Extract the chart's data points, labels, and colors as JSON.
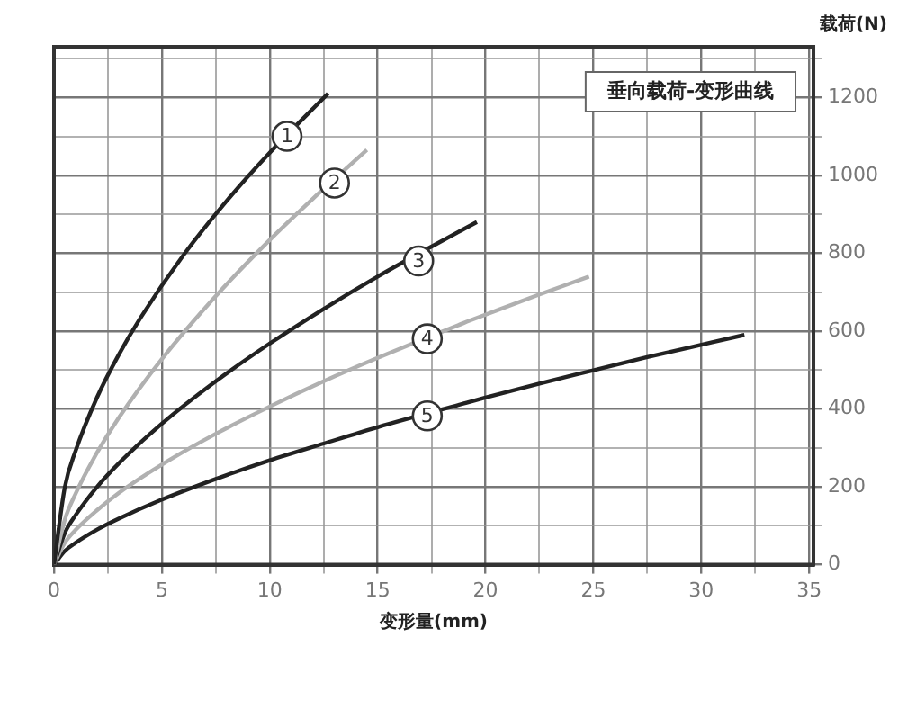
{
  "chart_data": {
    "type": "line",
    "title": "垂向载荷-变形曲线",
    "xlabel": "变形量(mm)",
    "ylabel": "载荷(N)",
    "series": [
      {
        "color": "#222222",
        "x": [
          0,
          0.5,
          1,
          2,
          3,
          4,
          6,
          8,
          10,
          12.7
        ],
        "values": [
          0,
          198,
          292,
          430,
          539,
          633,
          795,
          934,
          1058,
          1210
        ]
      },
      {
        "color": "#b0b0b0",
        "x": [
          0,
          0.5,
          1,
          2,
          3,
          5,
          7.5,
          10,
          12,
          14.5
        ],
        "values": [
          0,
          115,
          182,
          288,
          377,
          528,
          690,
          834,
          940,
          1065
        ]
      },
      {
        "color": "#222222",
        "x": [
          0,
          0.5,
          1,
          2,
          3,
          5,
          7.5,
          10,
          12.5,
          15,
          17.5,
          19.6
        ],
        "values": [
          0,
          81,
          127,
          200,
          260,
          362,
          471,
          568,
          657,
          740,
          817,
          880
        ]
      },
      {
        "color": "#b0b0b0",
        "x": [
          0,
          0.5,
          1,
          2,
          3,
          5,
          7.5,
          10,
          12.5,
          15,
          19,
          20,
          22.5,
          24.8
        ],
        "values": [
          0,
          56,
          89,
          140,
          184,
          257,
          336,
          406,
          471,
          531,
          621,
          642,
          694,
          740
        ]
      },
      {
        "color": "#222222",
        "x": [
          0,
          0.5,
          1,
          2,
          3,
          5,
          7.5,
          10,
          12.5,
          15,
          19,
          20,
          22.5,
          25,
          27.5,
          32
        ],
        "values": [
          0,
          35,
          56,
          90,
          118,
          167,
          220,
          268,
          311,
          353,
          414,
          429,
          465,
          499,
          533,
          590
        ]
      }
    ],
    "annotations": [
      {
        "text": "1",
        "x": 10.8,
        "y": 1100
      },
      {
        "text": "2",
        "x": 13.0,
        "y": 980
      },
      {
        "text": "3",
        "x": 16.9,
        "y": 780
      },
      {
        "text": "4",
        "x": 17.3,
        "y": 580
      },
      {
        "text": "5",
        "x": 17.3,
        "y": 382
      }
    ],
    "xlim": [
      0,
      35.2
    ],
    "ylim": [
      0,
      1330
    ],
    "xticks": [
      0,
      {
        "value": 2.5,
        "label": null
      },
      5,
      {
        "value": 7.5,
        "label": null
      },
      10,
      {
        "value": 12.5,
        "label": null
      },
      15,
      {
        "value": 17.5,
        "label": null
      },
      20,
      {
        "value": 22.5,
        "label": null
      },
      25,
      {
        "value": 27.5,
        "label": null
      },
      30,
      {
        "value": 32.5,
        "label": null
      },
      35
    ],
    "yticks": [
      0,
      {
        "value": 100,
        "label": null
      },
      200,
      {
        "value": 300,
        "label": null
      },
      400,
      {
        "value": 500,
        "label": null
      },
      600,
      {
        "value": 700,
        "label": null
      },
      800,
      {
        "value": 900,
        "label": null
      },
      1000,
      {
        "value": 1100,
        "label": null
      },
      1200,
      {
        "value": 1300,
        "label": null
      }
    ],
    "grid": true,
    "legend": false,
    "marker": "none",
    "line_style": "solid"
  }
}
